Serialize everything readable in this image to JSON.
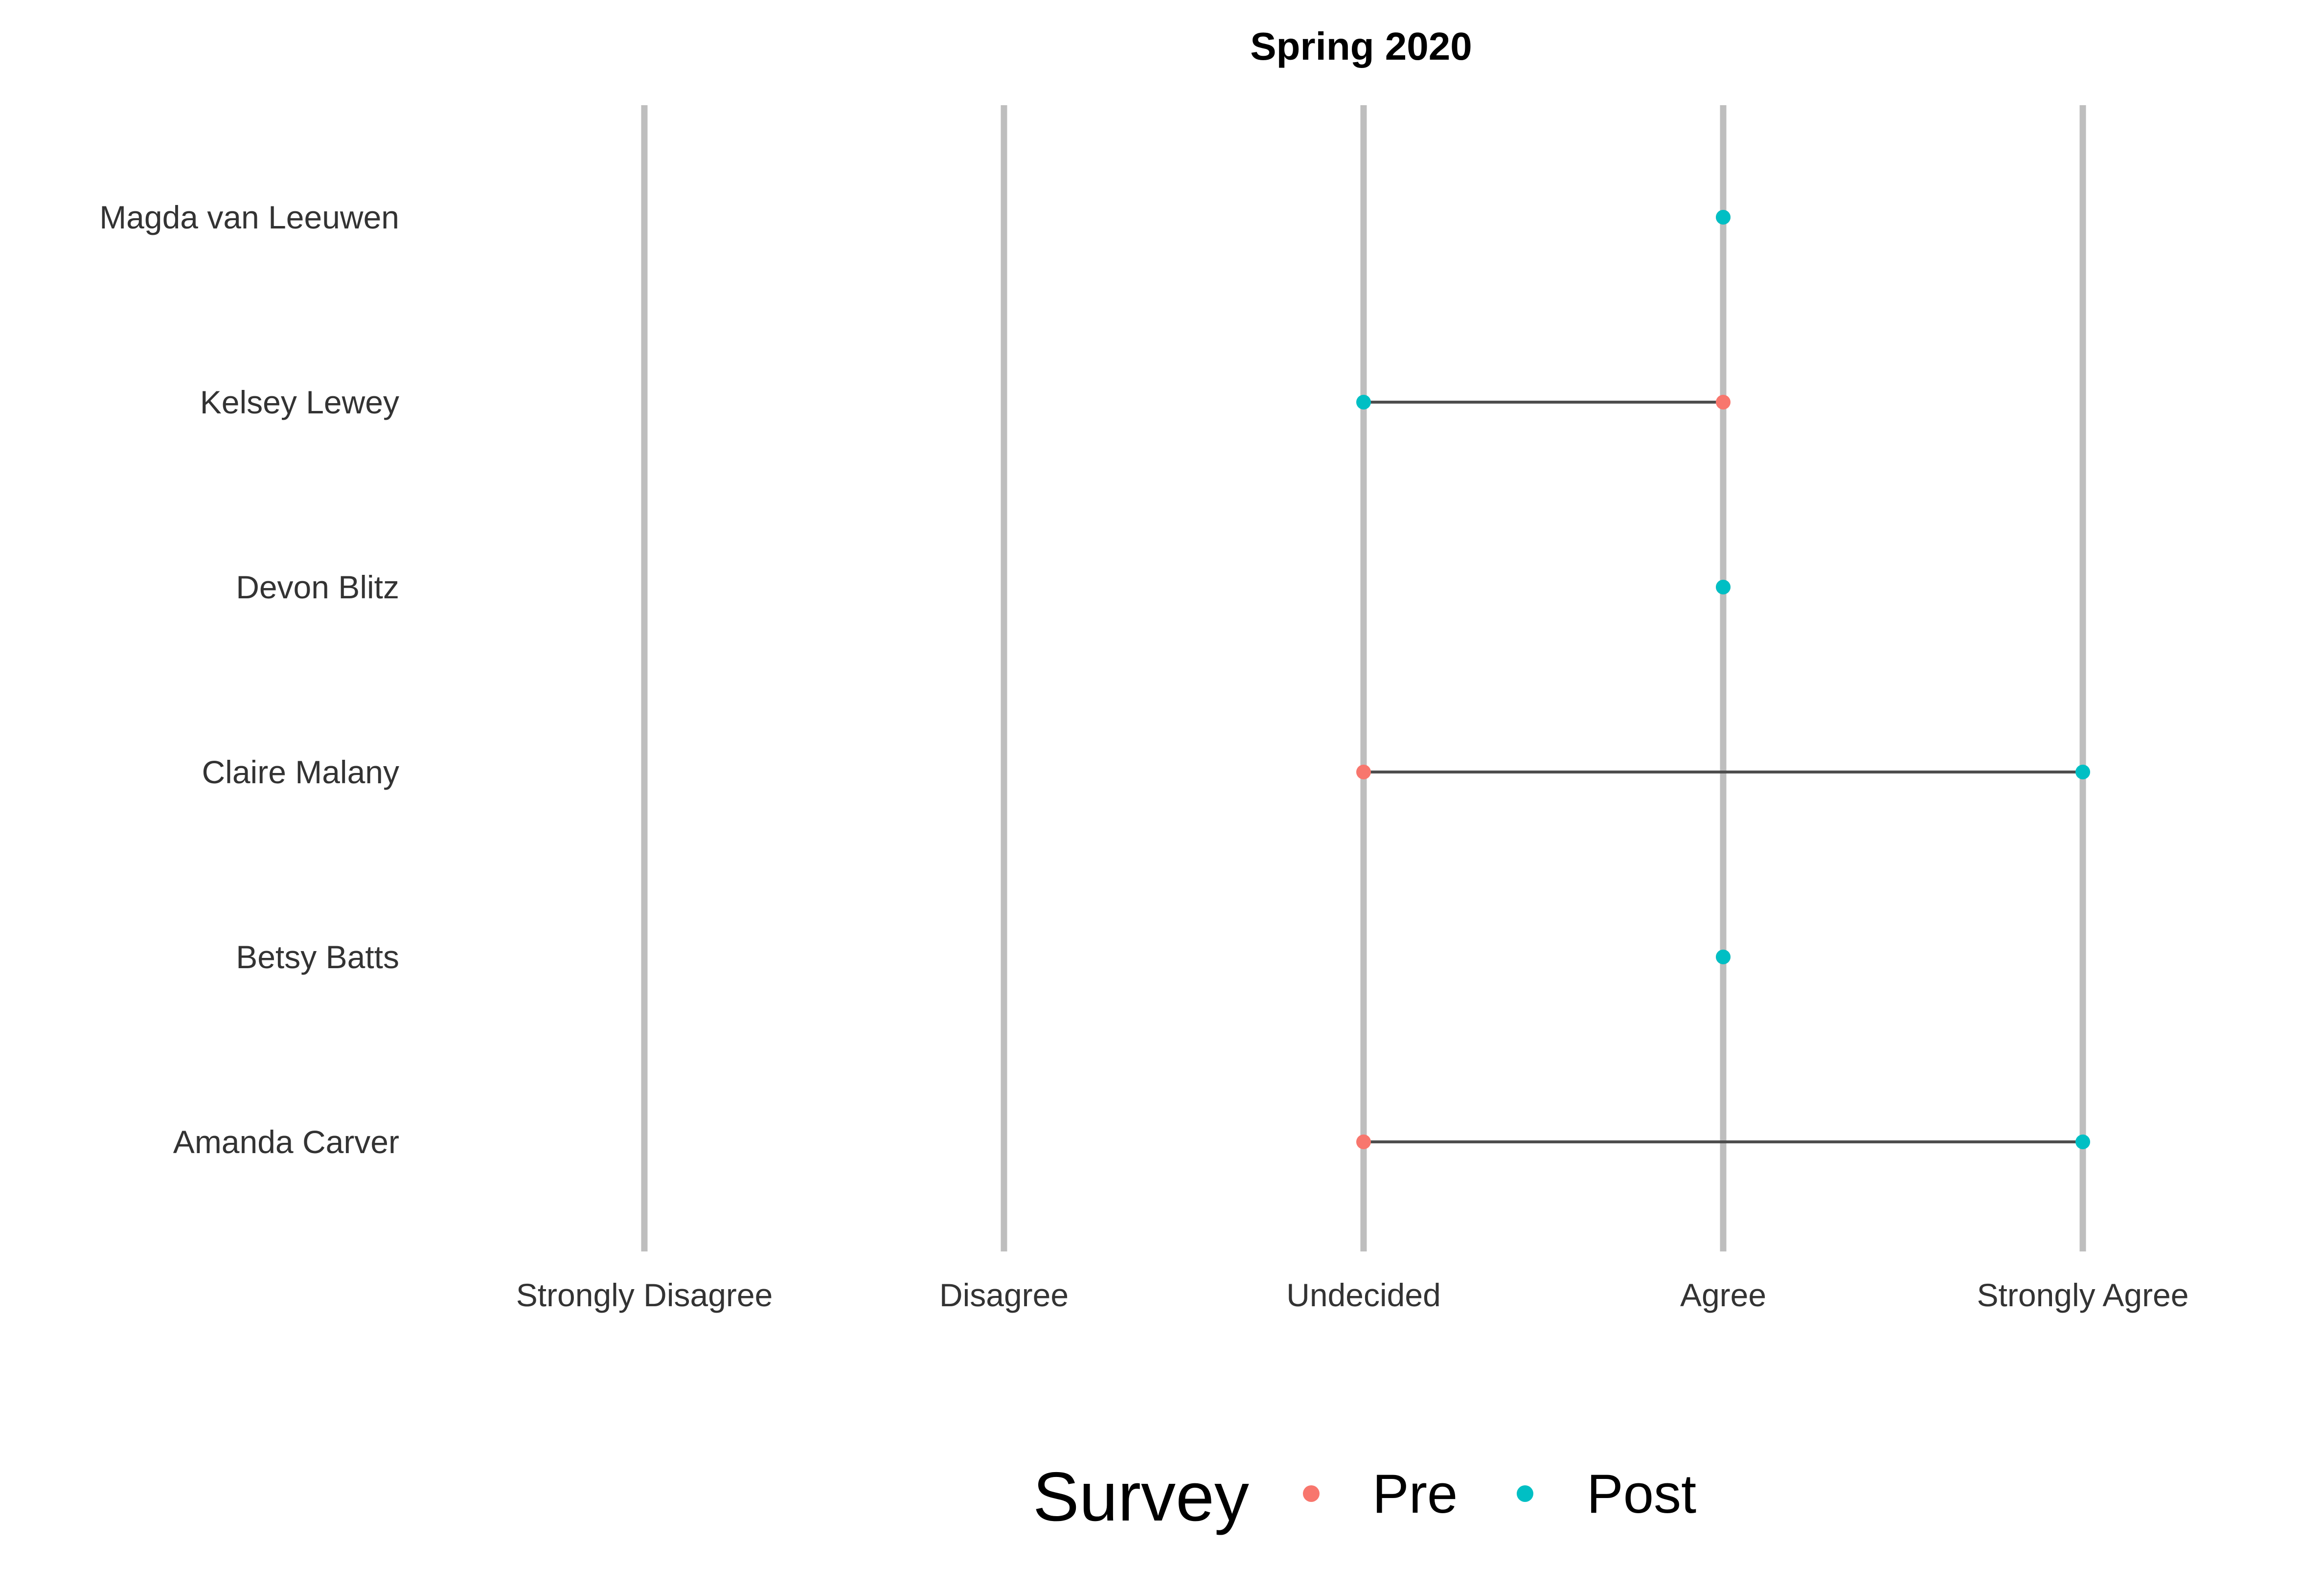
{
  "chart_data": {
    "type": "scatter",
    "title": "Spring 2020",
    "x_categories": [
      "Strongly Disagree",
      "Disagree",
      "Undecided",
      "Agree",
      "Strongly Agree"
    ],
    "y_categories": [
      "Magda van Leeuwen",
      "Kelsey Lewey",
      "Devon Blitz",
      "Claire Malany",
      "Betsy Batts",
      "Amanda Carver"
    ],
    "series": [
      {
        "name": "Pre",
        "color": "#F8766D",
        "points": [
          {
            "person": "Magda van Leeuwen",
            "response": "Agree"
          },
          {
            "person": "Kelsey Lewey",
            "response": "Agree"
          },
          {
            "person": "Devon Blitz",
            "response": "Agree"
          },
          {
            "person": "Claire Malany",
            "response": "Undecided"
          },
          {
            "person": "Betsy Batts",
            "response": "Agree"
          },
          {
            "person": "Amanda Carver",
            "response": "Undecided"
          }
        ]
      },
      {
        "name": "Post",
        "color": "#00BFC4",
        "points": [
          {
            "person": "Magda van Leeuwen",
            "response": "Agree"
          },
          {
            "person": "Kelsey Lewey",
            "response": "Undecided"
          },
          {
            "person": "Devon Blitz",
            "response": "Agree"
          },
          {
            "person": "Claire Malany",
            "response": "Strongly Agree"
          },
          {
            "person": "Betsy Batts",
            "response": "Agree"
          },
          {
            "person": "Amanda Carver",
            "response": "Strongly Agree"
          }
        ]
      }
    ],
    "connector_color": "#4D4D4D",
    "gridline_color": "#BEBEBE",
    "legend": {
      "title": "Survey",
      "position": "bottom",
      "entries": [
        "Pre",
        "Post"
      ]
    },
    "grid": "vertical major only"
  }
}
